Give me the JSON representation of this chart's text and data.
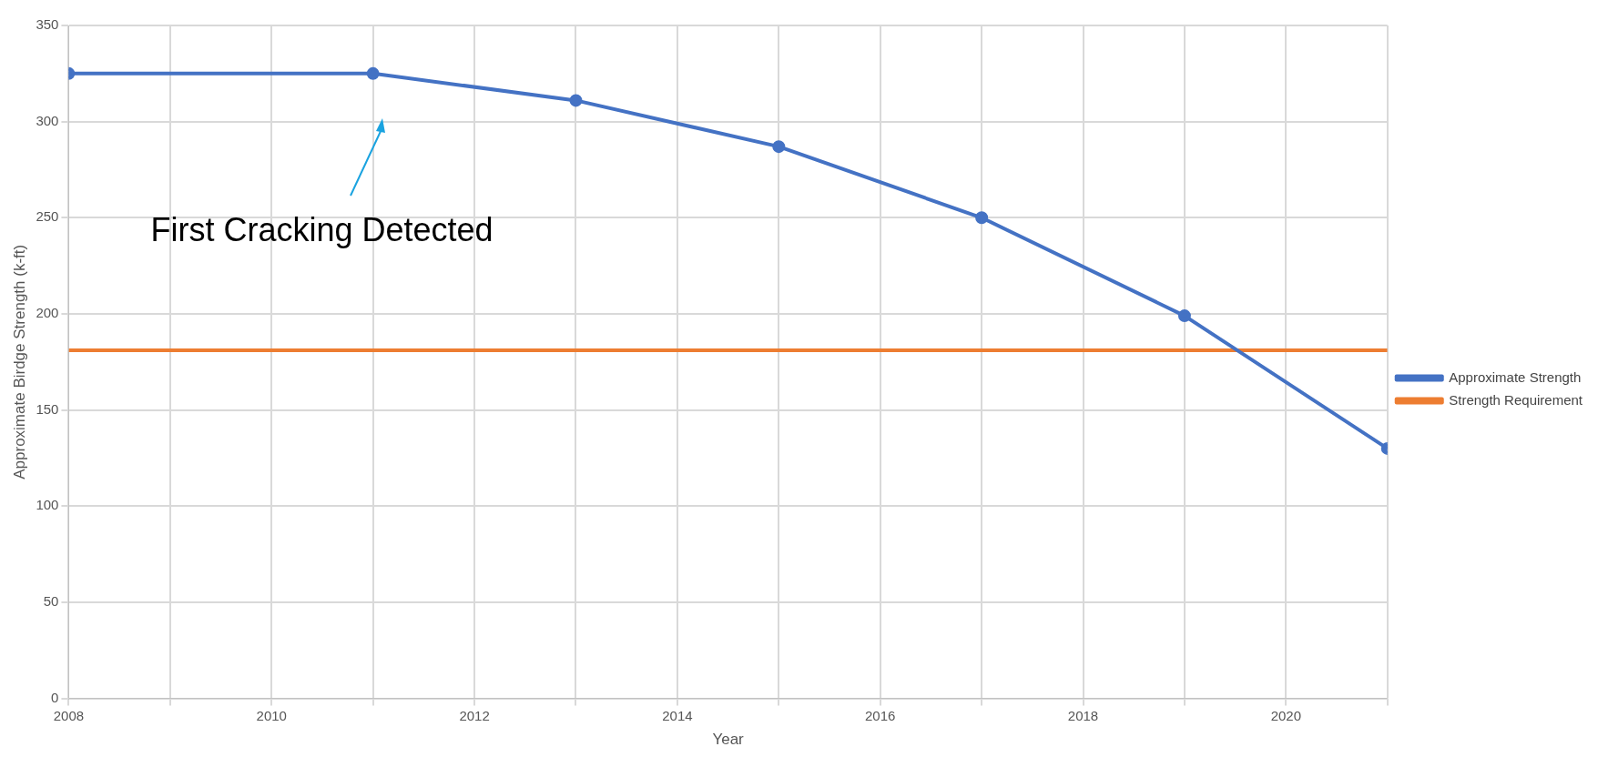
{
  "chart_data": {
    "type": "line",
    "xlabel": "Year",
    "ylabel": "Approximate Birdge Strength (k-ft)",
    "xlim": [
      2008,
      2021
    ],
    "xticks": [
      2008,
      {
        "value": 2009,
        "label": null
      },
      2010,
      {
        "value": 2011,
        "label": null
      },
      2012,
      {
        "value": 2013,
        "label": null
      },
      2014,
      {
        "value": 2015,
        "label": null
      },
      2016,
      {
        "value": 2017,
        "label": null
      },
      2018,
      {
        "value": 2019,
        "label": null
      },
      2020,
      {
        "value": 2021,
        "label": null
      }
    ],
    "ylim": [
      0,
      350
    ],
    "yticks": [
      0,
      50,
      100,
      150,
      200,
      250,
      300,
      350
    ],
    "grid": true,
    "legend": "right",
    "annotations": [
      "First Cracking Detected"
    ],
    "series": [
      {
        "name": "Approximate Strength",
        "color": "#4472c4",
        "marker": "circle",
        "x": [
          2008,
          2011,
          2013,
          2015,
          2017,
          2019,
          2021
        ],
        "values": [
          325,
          325,
          311,
          287,
          250,
          199,
          130
        ]
      },
      {
        "name": "Strength Requirement",
        "color": "#ed7d31",
        "marker": "none",
        "x": [
          2008,
          2021
        ],
        "values": [
          181,
          181
        ]
      }
    ]
  }
}
